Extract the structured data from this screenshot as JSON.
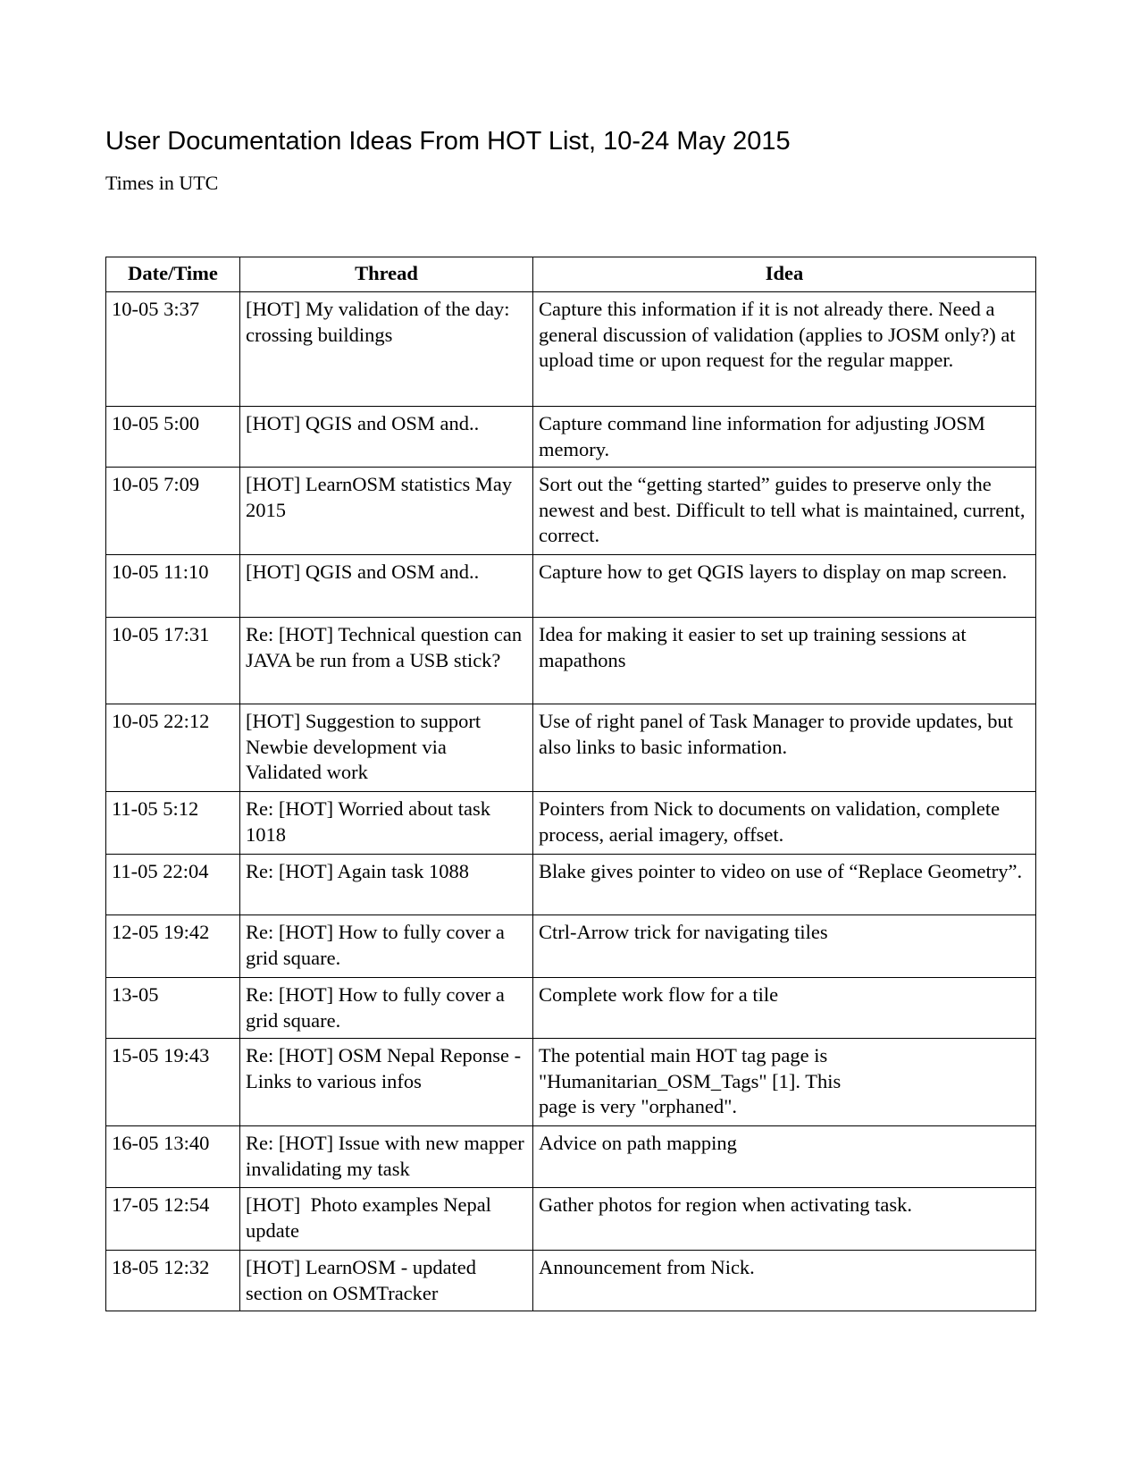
{
  "title": "User Documentation Ideas From HOT List, 10-24 May 2015",
  "subtitle": "Times in UTC",
  "table": {
    "headers": [
      "Date/Time",
      "Thread",
      "Idea"
    ],
    "rows": [
      {
        "date": "10-05 3:37",
        "thread": "[HOT] My validation of the day: crossing buildings",
        "idea": "Capture this information if it is not already there. Need a general discussion of validation (applies to JOSM only?) at upload time or upon request for the regular mapper."
      },
      {
        "date": "10-05 5:00",
        "thread": "[HOT] QGIS and OSM and..",
        "idea": "Capture command line information for adjusting JOSM memory."
      },
      {
        "date": "10-05 7:09",
        "thread": "[HOT] LearnOSM statistics May 2015",
        "idea": "Sort out the “getting started” guides to preserve only the newest and best. Difficult to tell what is maintained, current, correct."
      },
      {
        "date": "10-05 11:10",
        "thread": "[HOT] QGIS and OSM and..",
        "idea": "Capture how to get QGIS layers to display on map screen."
      },
      {
        "date": "10-05 17:31",
        "thread": "Re: [HOT] Technical question can JAVA be run from a USB stick?",
        "idea": "Idea for making it easier to set up training sessions at mapathons"
      },
      {
        "date": "10-05 22:12",
        "thread": "[HOT] Suggestion to support Newbie development via Validated work",
        "idea": "Use of right panel of Task Manager to provide updates, but also links to basic information."
      },
      {
        "date": "11-05 5:12",
        "thread": "Re: [HOT] Worried about task 1018",
        "idea": "Pointers from Nick to documents on validation, complete process, aerial imagery, offset."
      },
      {
        "date": "11-05 22:04",
        "thread": "Re: [HOT] Again task 1088",
        "idea": "Blake gives pointer to video on use of “Replace Geometry”."
      },
      {
        "date": "12-05 19:42",
        "thread": "Re: [HOT] How to fully cover a grid square.",
        "idea": "Ctrl-Arrow trick for navigating tiles"
      },
      {
        "date": "13-05",
        "thread": "Re: [HOT] How to fully cover a grid square.",
        "idea": "Complete work flow for a tile"
      },
      {
        "date": "15-05 19:43",
        "thread": "Re: [HOT] OSM Nepal Reponse - Links to various infos",
        "idea": "The potential main HOT tag page is\n\"Humanitarian_OSM_Tags\" [1]. This\npage is very \"orphaned\"."
      },
      {
        "date": "16-05 13:40",
        "thread": "Re: [HOT] Issue with new mapper invalidating my task",
        "idea": "Advice on path mapping"
      },
      {
        "date": "17-05 12:54",
        "thread": "[HOT]  Photo examples Nepal update",
        "idea": "Gather photos for region when activating task."
      },
      {
        "date": "18-05 12:32",
        "thread": "[HOT] LearnOSM - updated section on OSMTracker",
        "idea": "Announcement from Nick."
      }
    ]
  }
}
